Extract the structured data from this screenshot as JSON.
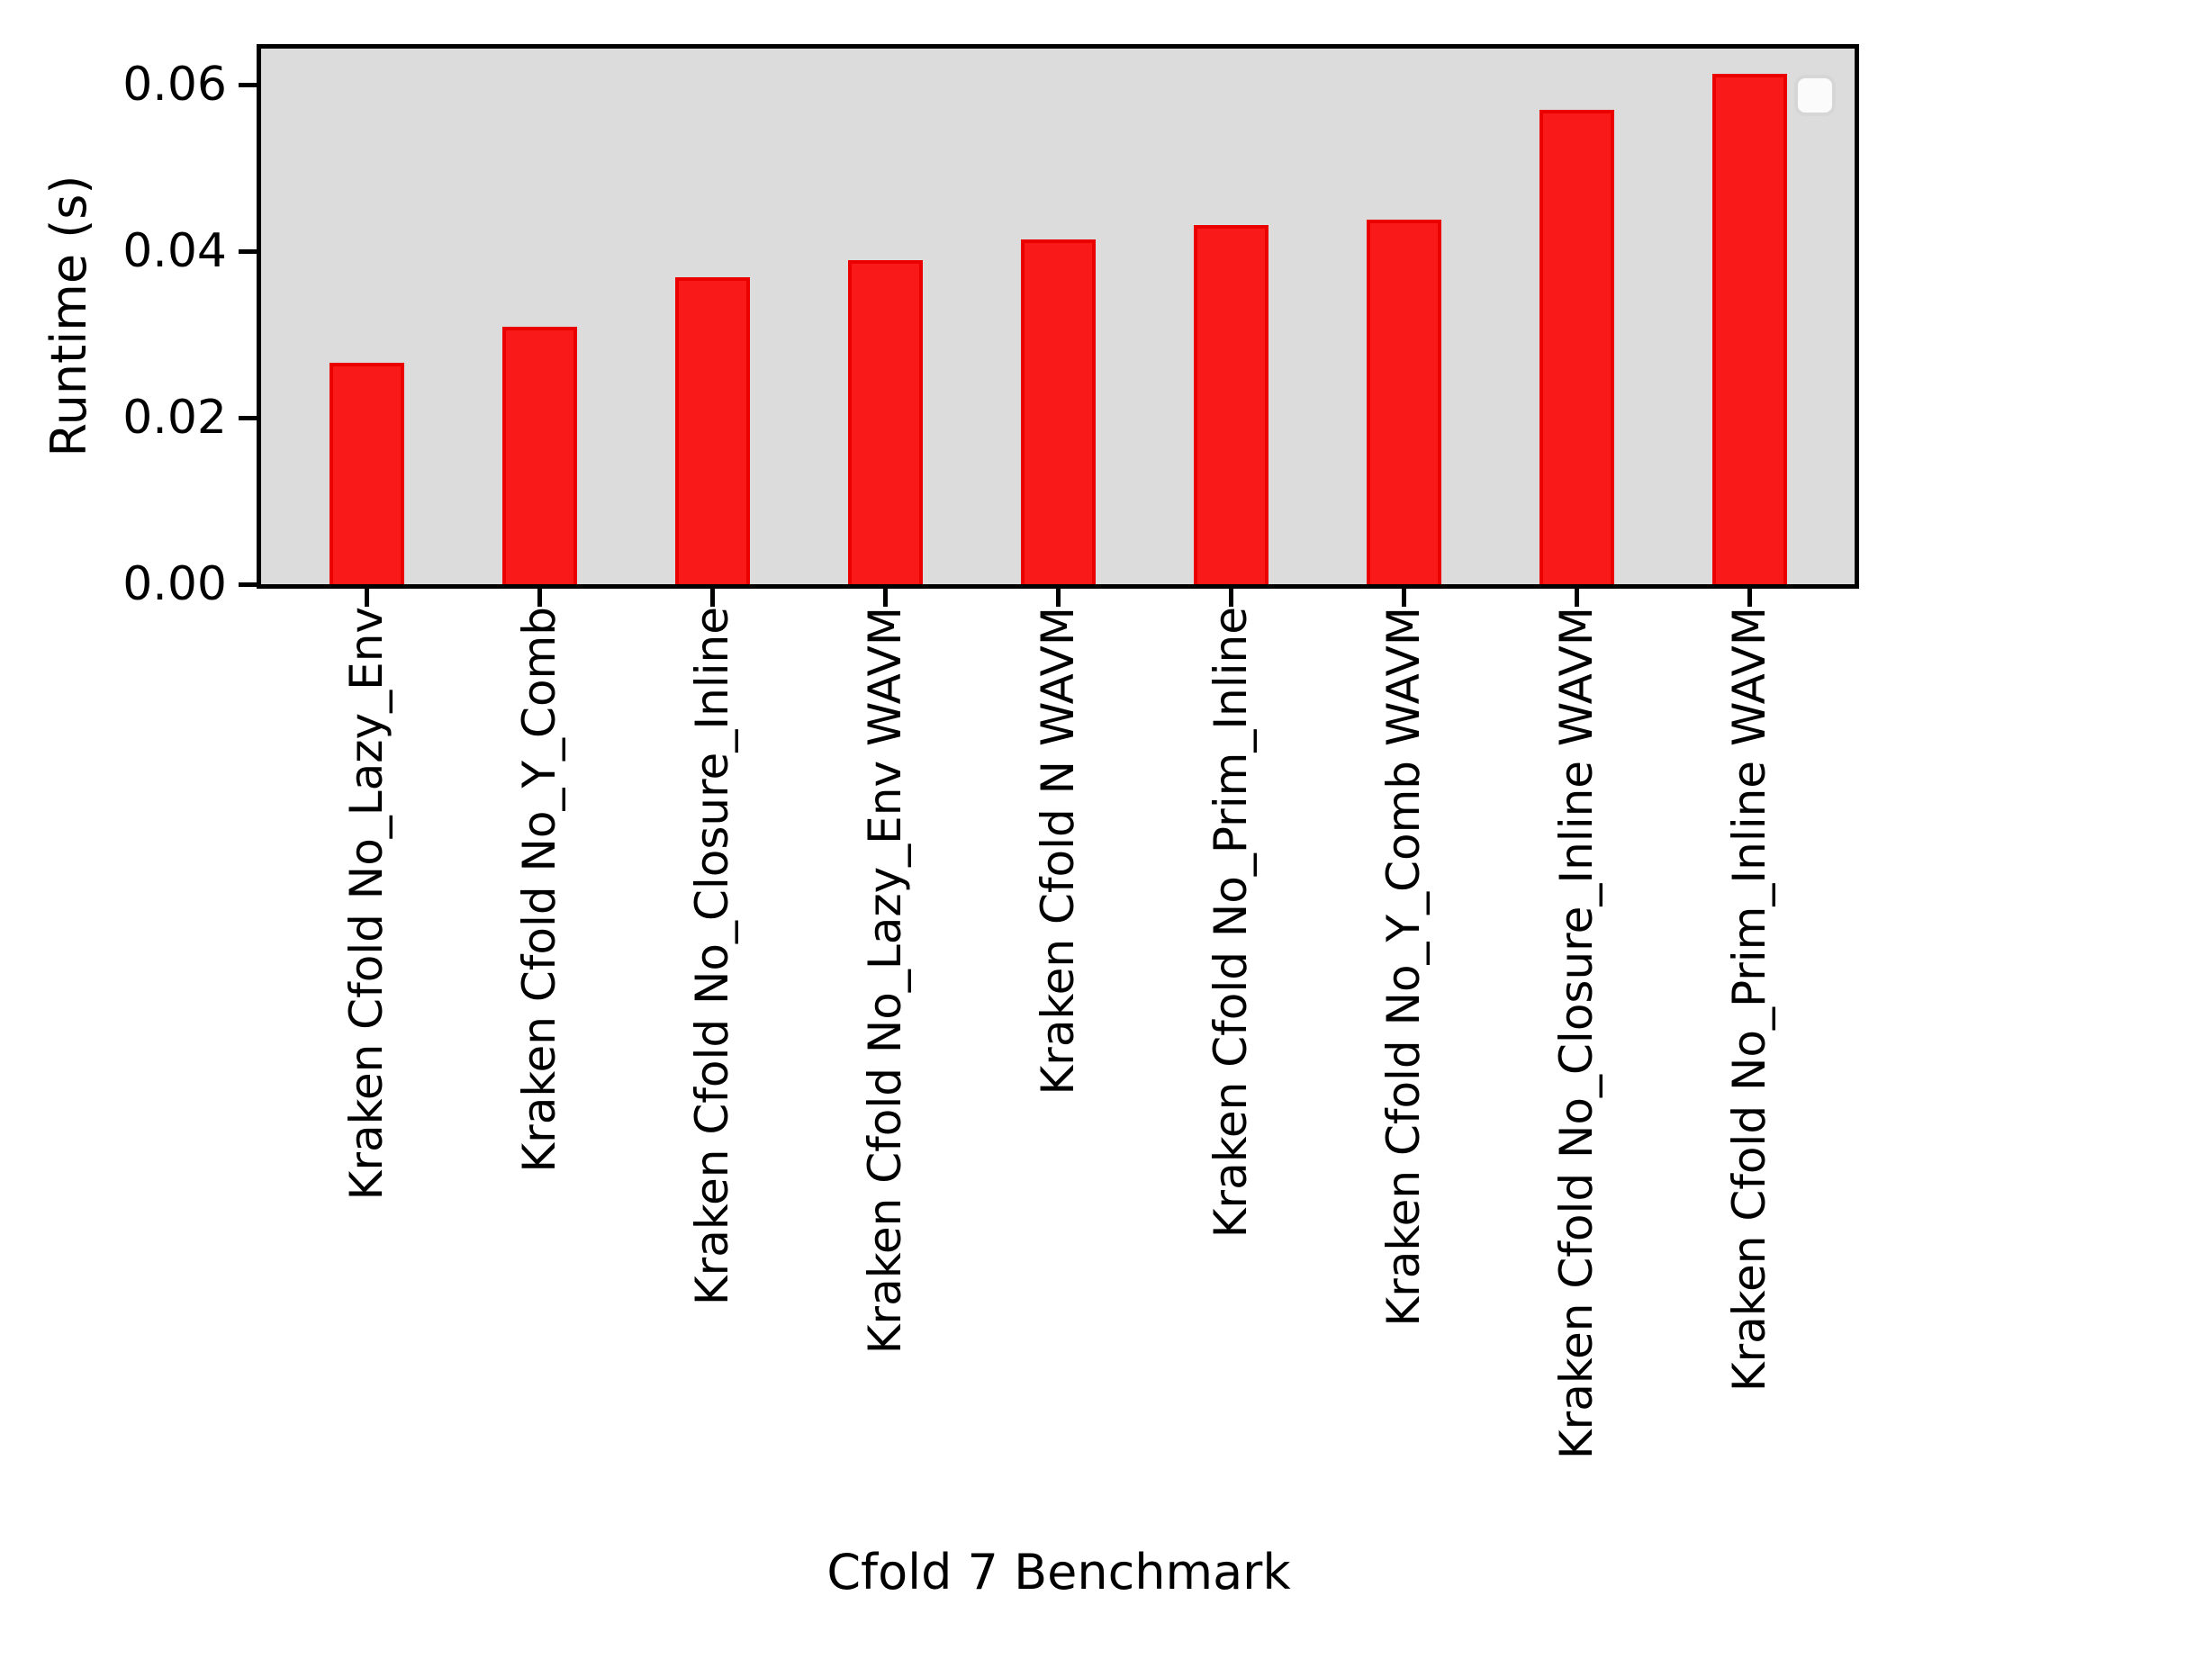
{
  "chart_data": {
    "type": "bar",
    "title": "",
    "xlabel": "Cfold 7 Benchmark",
    "ylabel": "Runtime (s)",
    "categories": [
      "Kraken Cfold No_Lazy_Env",
      "Kraken Cfold No_Y_Comb",
      "Kraken Cfold No_Closure_Inline",
      "Kraken Cfold No_Lazy_Env WAVM",
      "Kraken Cfold N WAVM",
      "Kraken Cfold No_Prim_Inline",
      "Kraken Cfold No_Y_Comb WAVM",
      "Kraken Cfold No_Closure_Inline WAVM",
      "Kraken Cfold No_Prim_Inline WAVM"
    ],
    "values": [
      0.0266,
      0.0309,
      0.0368,
      0.0389,
      0.0414,
      0.0431,
      0.0438,
      0.0569,
      0.0613
    ],
    "ylim": [
      0,
      0.0643
    ],
    "ytick_values": [
      0,
      0.02,
      0.04,
      0.06
    ],
    "ytick_labels": [
      "0.00",
      "0.02",
      "0.04",
      "0.06"
    ],
    "xtick_rotation_deg": 90,
    "grid": false,
    "legend": {
      "position": "upper right",
      "entries": []
    },
    "colors": {
      "bar_fill": "#fa1919",
      "bar_edge": "#eb0000",
      "plot_background": "#dcdcdc",
      "spine": "#000000",
      "text": "#000000",
      "legend_background": "#fbfbfb",
      "legend_border": "#d6d6d6"
    }
  }
}
